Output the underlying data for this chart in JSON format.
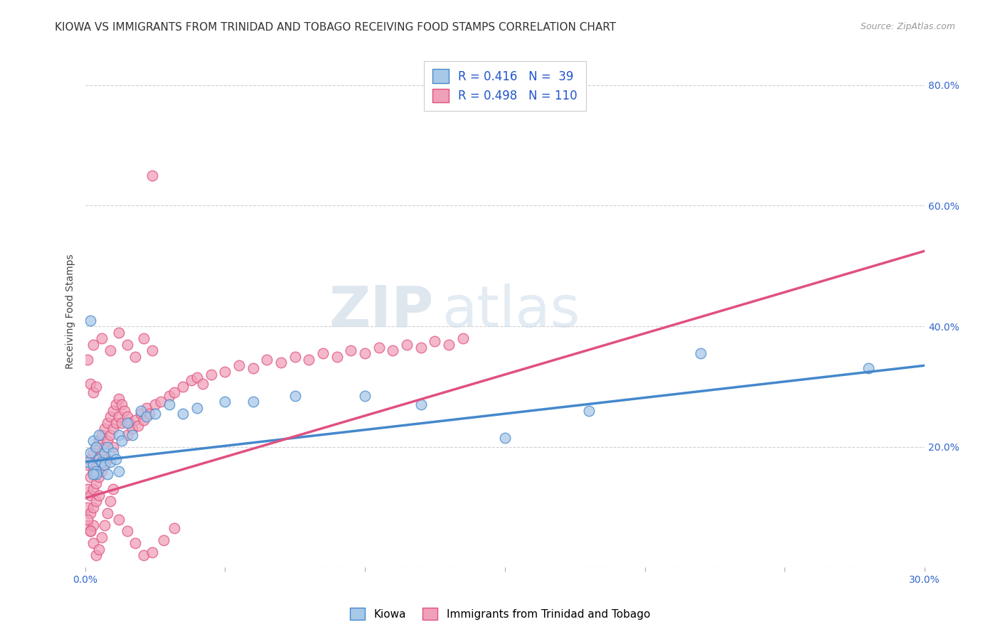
{
  "title": "KIOWA VS IMMIGRANTS FROM TRINIDAD AND TOBAGO RECEIVING FOOD STAMPS CORRELATION CHART",
  "source": "Source: ZipAtlas.com",
  "ylabel": "Receiving Food Stamps",
  "x_min": 0.0,
  "x_max": 0.3,
  "y_min": 0.0,
  "y_max": 0.85,
  "x_ticks": [
    0.0,
    0.05,
    0.1,
    0.15,
    0.2,
    0.25,
    0.3
  ],
  "y_ticks": [
    0.0,
    0.2,
    0.4,
    0.6,
    0.8
  ],
  "y_tick_labels": [
    "",
    "20.0%",
    "40.0%",
    "60.0%",
    "80.0%"
  ],
  "watermark_zip": "ZIP",
  "watermark_atlas": "atlas",
  "legend_line1": "R = 0.416   N =  39",
  "legend_line2": "R = 0.498   N = 110",
  "color_blue_fill": "#a8c8e8",
  "color_blue_edge": "#4488cc",
  "color_pink_fill": "#f0a0b8",
  "color_pink_edge": "#e05080",
  "line_color_blue": "#4488cc",
  "line_color_pink": "#e05080",
  "blue_line_x0": 0.0,
  "blue_line_y0": 0.175,
  "blue_line_x1": 0.3,
  "blue_line_y1": 0.335,
  "pink_line_x0": 0.0,
  "pink_line_y0": 0.115,
  "pink_line_x1": 0.3,
  "pink_line_y1": 0.525,
  "scatter_blue_x": [
    0.001,
    0.002,
    0.003,
    0.003,
    0.004,
    0.004,
    0.005,
    0.005,
    0.006,
    0.007,
    0.007,
    0.008,
    0.009,
    0.01,
    0.011,
    0.012,
    0.013,
    0.015,
    0.017,
    0.02,
    0.022,
    0.025,
    0.03,
    0.035,
    0.04,
    0.05,
    0.06,
    0.075,
    0.1,
    0.12,
    0.15,
    0.18,
    0.22,
    0.28,
    0.004,
    0.008,
    0.012,
    0.002,
    0.003
  ],
  "scatter_blue_y": [
    0.175,
    0.19,
    0.17,
    0.21,
    0.16,
    0.2,
    0.18,
    0.22,
    0.175,
    0.19,
    0.17,
    0.2,
    0.175,
    0.19,
    0.18,
    0.22,
    0.21,
    0.24,
    0.22,
    0.26,
    0.25,
    0.255,
    0.27,
    0.255,
    0.265,
    0.275,
    0.275,
    0.285,
    0.285,
    0.27,
    0.215,
    0.26,
    0.355,
    0.33,
    0.155,
    0.155,
    0.16,
    0.41,
    0.155
  ],
  "scatter_pink_x": [
    0.001,
    0.001,
    0.001,
    0.001,
    0.002,
    0.002,
    0.002,
    0.002,
    0.002,
    0.003,
    0.003,
    0.003,
    0.003,
    0.003,
    0.004,
    0.004,
    0.004,
    0.004,
    0.005,
    0.005,
    0.005,
    0.005,
    0.006,
    0.006,
    0.006,
    0.007,
    0.007,
    0.007,
    0.008,
    0.008,
    0.008,
    0.009,
    0.009,
    0.01,
    0.01,
    0.01,
    0.011,
    0.011,
    0.012,
    0.012,
    0.013,
    0.013,
    0.014,
    0.015,
    0.015,
    0.016,
    0.017,
    0.018,
    0.019,
    0.02,
    0.021,
    0.022,
    0.023,
    0.025,
    0.027,
    0.03,
    0.032,
    0.035,
    0.038,
    0.04,
    0.042,
    0.045,
    0.05,
    0.055,
    0.06,
    0.065,
    0.07,
    0.075,
    0.08,
    0.085,
    0.09,
    0.095,
    0.1,
    0.105,
    0.11,
    0.115,
    0.12,
    0.125,
    0.13,
    0.135,
    0.001,
    0.002,
    0.003,
    0.004,
    0.005,
    0.006,
    0.007,
    0.008,
    0.009,
    0.01,
    0.012,
    0.015,
    0.018,
    0.021,
    0.024,
    0.028,
    0.032,
    0.003,
    0.006,
    0.009,
    0.012,
    0.015,
    0.018,
    0.021,
    0.024,
    0.024,
    0.001,
    0.002,
    0.003,
    0.004
  ],
  "scatter_pink_y": [
    0.17,
    0.13,
    0.1,
    0.07,
    0.18,
    0.15,
    0.12,
    0.09,
    0.06,
    0.19,
    0.16,
    0.13,
    0.1,
    0.07,
    0.2,
    0.17,
    0.14,
    0.11,
    0.21,
    0.18,
    0.15,
    0.12,
    0.22,
    0.19,
    0.16,
    0.23,
    0.2,
    0.17,
    0.24,
    0.21,
    0.18,
    0.25,
    0.22,
    0.26,
    0.23,
    0.2,
    0.27,
    0.24,
    0.28,
    0.25,
    0.27,
    0.24,
    0.26,
    0.25,
    0.22,
    0.24,
    0.23,
    0.245,
    0.235,
    0.255,
    0.245,
    0.265,
    0.255,
    0.27,
    0.275,
    0.285,
    0.29,
    0.3,
    0.31,
    0.315,
    0.305,
    0.32,
    0.325,
    0.335,
    0.33,
    0.345,
    0.34,
    0.35,
    0.345,
    0.355,
    0.35,
    0.36,
    0.355,
    0.365,
    0.36,
    0.37,
    0.365,
    0.375,
    0.37,
    0.38,
    0.08,
    0.06,
    0.04,
    0.02,
    0.03,
    0.05,
    0.07,
    0.09,
    0.11,
    0.13,
    0.08,
    0.06,
    0.04,
    0.02,
    0.025,
    0.045,
    0.065,
    0.37,
    0.38,
    0.36,
    0.39,
    0.37,
    0.35,
    0.38,
    0.36,
    0.65,
    0.345,
    0.305,
    0.29,
    0.3
  ],
  "background_color": "#ffffff",
  "grid_color": "#d0d0d0",
  "title_fontsize": 11,
  "ylabel_fontsize": 10,
  "tick_fontsize": 10,
  "legend_fontsize": 12
}
